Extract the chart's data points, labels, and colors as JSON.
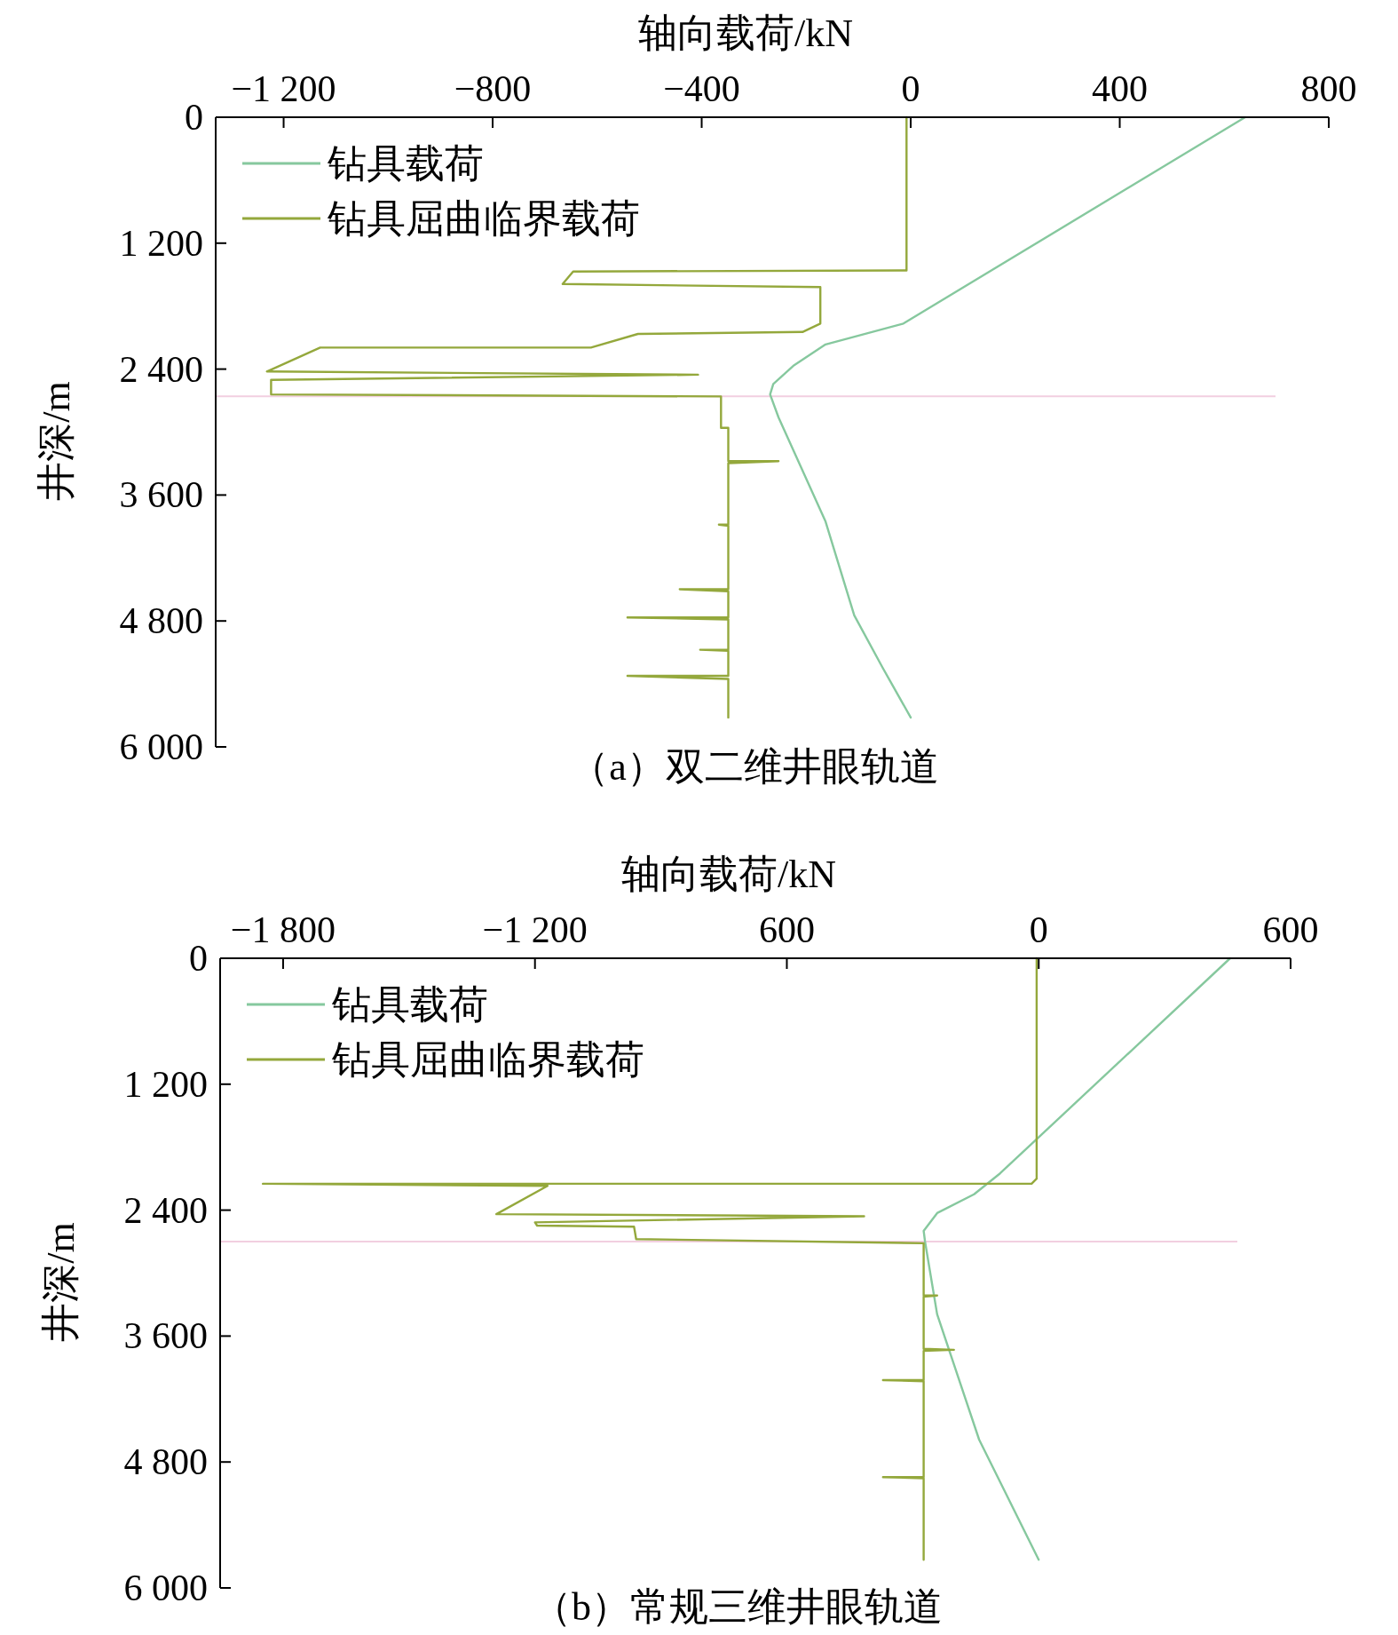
{
  "chart_data": [
    {
      "type": "line",
      "xlabel": "轴向载荷/kN",
      "ylabel": "井深/m",
      "xlim": [
        -1330,
        800
      ],
      "xticks": [
        {
          "value": -1200,
          "label": "−1 200"
        },
        {
          "value": -800,
          "label": "−800"
        },
        {
          "value": -400,
          "label": "−400"
        },
        0,
        400,
        800
      ],
      "ylim": [
        6000,
        0
      ],
      "yticks": [
        0,
        {
          "value": 1200,
          "label": "1 200"
        },
        {
          "value": 2400,
          "label": "2 400"
        },
        {
          "value": 3600,
          "label": "3 600"
        },
        {
          "value": 4800,
          "label": "4 800"
        },
        {
          "value": 6000,
          "label": "6 000"
        }
      ],
      "legend": "top left",
      "series": [
        {
          "name": "钻具载荷",
          "color": "#86c89e",
          "x": [
            640,
            -14,
            -163,
            -223,
            -263,
            -269,
            -253,
            -163,
            -108,
            -54,
            0
          ],
          "values": [
            0,
            1966,
            2165,
            2363,
            2542,
            2641,
            2860,
            3853,
            4747,
            5243,
            5720
          ]
        },
        {
          "name": "钻具屈曲临界载荷",
          "color": "#94a83c",
          "x": [
            -8,
            -8,
            -646,
            -666,
            -173,
            -173,
            -207,
            -522,
            -612,
            -1130,
            -1232,
            -407,
            -1224,
            -1224,
            -363,
            -363,
            -349,
            -349,
            -253,
            -349,
            -349,
            -367,
            -349,
            -349,
            -442,
            -349,
            -349,
            -542,
            -349,
            -349,
            -403,
            -349,
            -349,
            -542,
            -349,
            -349
          ],
          "values": [
            0,
            1460,
            1470,
            1589,
            1619,
            1966,
            2046,
            2065,
            2195,
            2195,
            2423,
            2453,
            2502,
            2641,
            2661,
            2959,
            2959,
            3277,
            3277,
            3297,
            3883,
            3883,
            3893,
            4498,
            4498,
            4518,
            4766,
            4766,
            4786,
            5074,
            5074,
            5084,
            5323,
            5323,
            5353,
            5720
          ]
        }
      ],
      "ref_lines": [
        {
          "axis": "y",
          "value": 2660,
          "color": "#f2cfe0"
        }
      ],
      "annotations": [
        "（a）双二维井眼轨道"
      ]
    },
    {
      "type": "line",
      "xlabel": "轴向载荷/kN",
      "ylabel": "井深/m",
      "xlim": [
        -1950,
        600
      ],
      "xticks": [
        {
          "value": -1800,
          "label": "−1 800"
        },
        {
          "value": -1200,
          "label": "−1 200"
        },
        {
          "value": -600,
          "label": "600"
        },
        0,
        600
      ],
      "ylim": [
        6000,
        0
      ],
      "yticks": [
        0,
        {
          "value": 1200,
          "label": "1 200"
        },
        {
          "value": 2400,
          "label": "2 400"
        },
        {
          "value": 3600,
          "label": "3 600"
        },
        {
          "value": 4800,
          "label": "4 800"
        },
        {
          "value": 6000,
          "label": "6 000"
        }
      ],
      "legend": "top left",
      "series": [
        {
          "name": "钻具载荷",
          "color": "#86c89e",
          "x": [
            456,
            -92,
            -154,
            -242,
            -274,
            -271,
            -242,
            -142,
            0
          ],
          "values": [
            0,
            2050,
            2249,
            2428,
            2597,
            2697,
            3393,
            4587,
            5731
          ]
        },
        {
          "name": "钻具屈曲临界载荷",
          "color": "#94a83c",
          "x": [
            -5,
            -5,
            -17,
            -1848,
            -1170,
            -1292,
            -416,
            -1200,
            -1195,
            -964,
            -959,
            -274,
            -274,
            -242,
            -274,
            -274,
            -202,
            -274,
            -274,
            -371,
            -274,
            -274,
            -371,
            -274,
            -274
          ],
          "values": [
            0,
            2100,
            2149,
            2149,
            2169,
            2438,
            2458,
            2517,
            2547,
            2557,
            2676,
            2716,
            3214,
            3214,
            3224,
            3721,
            3731,
            3741,
            4020,
            4020,
            4030,
            4945,
            4945,
            4955,
            5731
          ]
        }
      ],
      "ref_lines": [
        {
          "axis": "y",
          "value": 2700,
          "color": "#f2cfe0"
        }
      ],
      "annotations": [
        "（b）常规三维井眼轨道"
      ]
    }
  ]
}
